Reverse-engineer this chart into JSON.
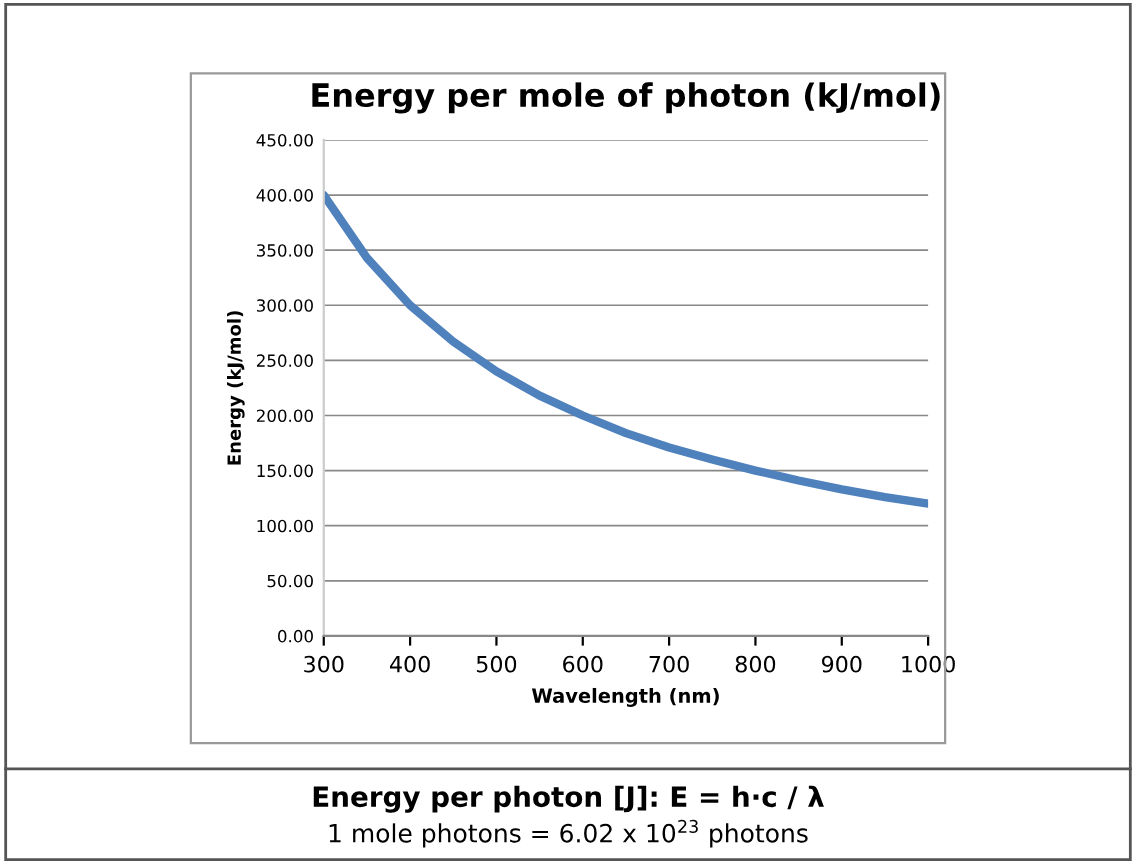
{
  "chart_data": {
    "type": "line",
    "title": "Energy per mole of photon (kJ/mol)",
    "xlabel": "Wavelength (nm)",
    "ylabel": "Energy (kJ/mol)",
    "x": [
      300,
      350,
      400,
      450,
      500,
      550,
      600,
      650,
      700,
      750,
      800,
      850,
      900,
      950,
      1000
    ],
    "series": [
      {
        "color": "#4f81bd",
        "values": [
          400,
          343,
          300,
          267,
          240,
          218,
          200,
          184,
          171,
          160,
          150,
          141,
          133,
          126,
          120
        ]
      }
    ],
    "xlim": [
      300,
      1000
    ],
    "xticks": [
      300,
      400,
      500,
      600,
      700,
      800,
      900,
      1000
    ],
    "ylim": [
      0,
      450
    ],
    "yticks": [
      {
        "value": 0,
        "label": "0.00"
      },
      {
        "value": 50,
        "label": "50.00"
      },
      {
        "value": 100,
        "label": "100.00"
      },
      {
        "value": 150,
        "label": "150.00"
      },
      {
        "value": 200,
        "label": "200.00"
      },
      {
        "value": 250,
        "label": "250.00"
      },
      {
        "value": 300,
        "label": "300.00"
      },
      {
        "value": 350,
        "label": "350.00"
      },
      {
        "value": 400,
        "label": "400.00"
      },
      {
        "value": 450,
        "label": "450.00"
      }
    ],
    "grid": "y",
    "legend": false,
    "marker": "none",
    "line_style": "solid",
    "annotations": [
      "Energy per photon [J]: E = h·c / λ",
      "1 mole photons = 6.02 x 10$^{23}$ photons"
    ]
  }
}
